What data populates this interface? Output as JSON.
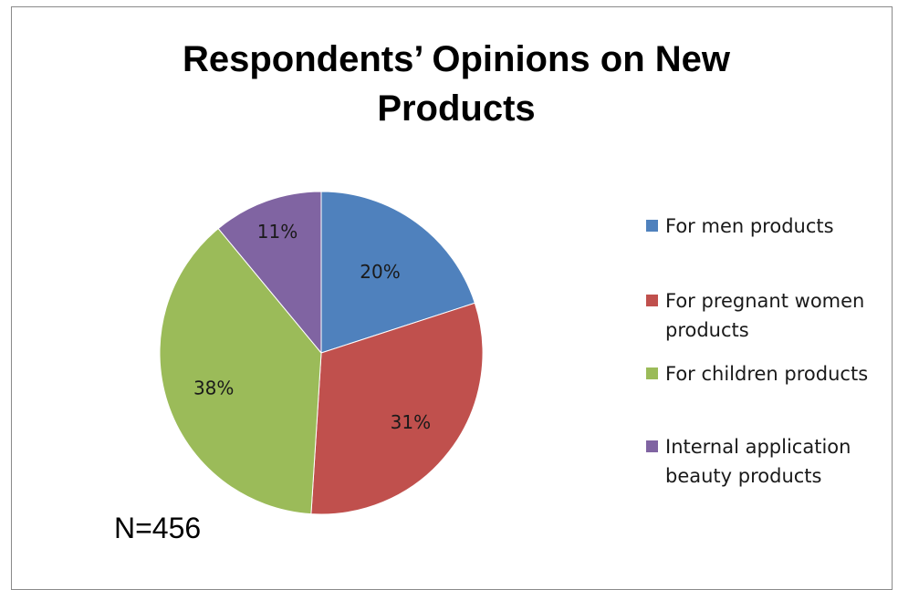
{
  "chart_data": {
    "type": "pie",
    "title": "Respondents’ Opinions on New Products",
    "categories": [
      "For men products",
      "For pregnant women products",
      "For children products",
      "Internal application beauty products"
    ],
    "values": [
      20,
      31,
      38,
      11
    ],
    "data_labels": [
      "20%",
      "31%",
      "38%",
      "11%"
    ],
    "colors": [
      "#4f81bd",
      "#c0504d",
      "#9bbb59",
      "#8064a2"
    ],
    "legend_position": "right",
    "annotation": "N=456"
  }
}
